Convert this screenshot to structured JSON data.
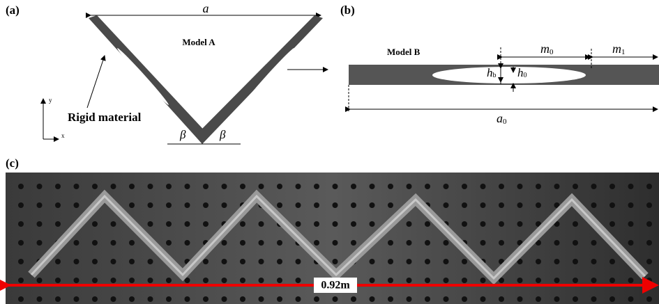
{
  "panel_a": {
    "label": "(a)",
    "width_label": "a",
    "model": "Model A",
    "material_label": "Rigid material",
    "axis_y": "y",
    "axis_x": "x",
    "angle_left": "β",
    "angle_right": "β"
  },
  "panel_b": {
    "label": "(b)",
    "model": "Model B",
    "m0": {
      "base": "m",
      "sub": "0"
    },
    "m1": {
      "base": "m",
      "sub": "1"
    },
    "hb": {
      "base": "h",
      "sub": "b"
    },
    "h0": {
      "base": "h",
      "sub": "0"
    },
    "a0": {
      "base": "a",
      "sub": "0"
    }
  },
  "panel_c": {
    "label": "(c)",
    "length_label": "0.92m"
  }
}
